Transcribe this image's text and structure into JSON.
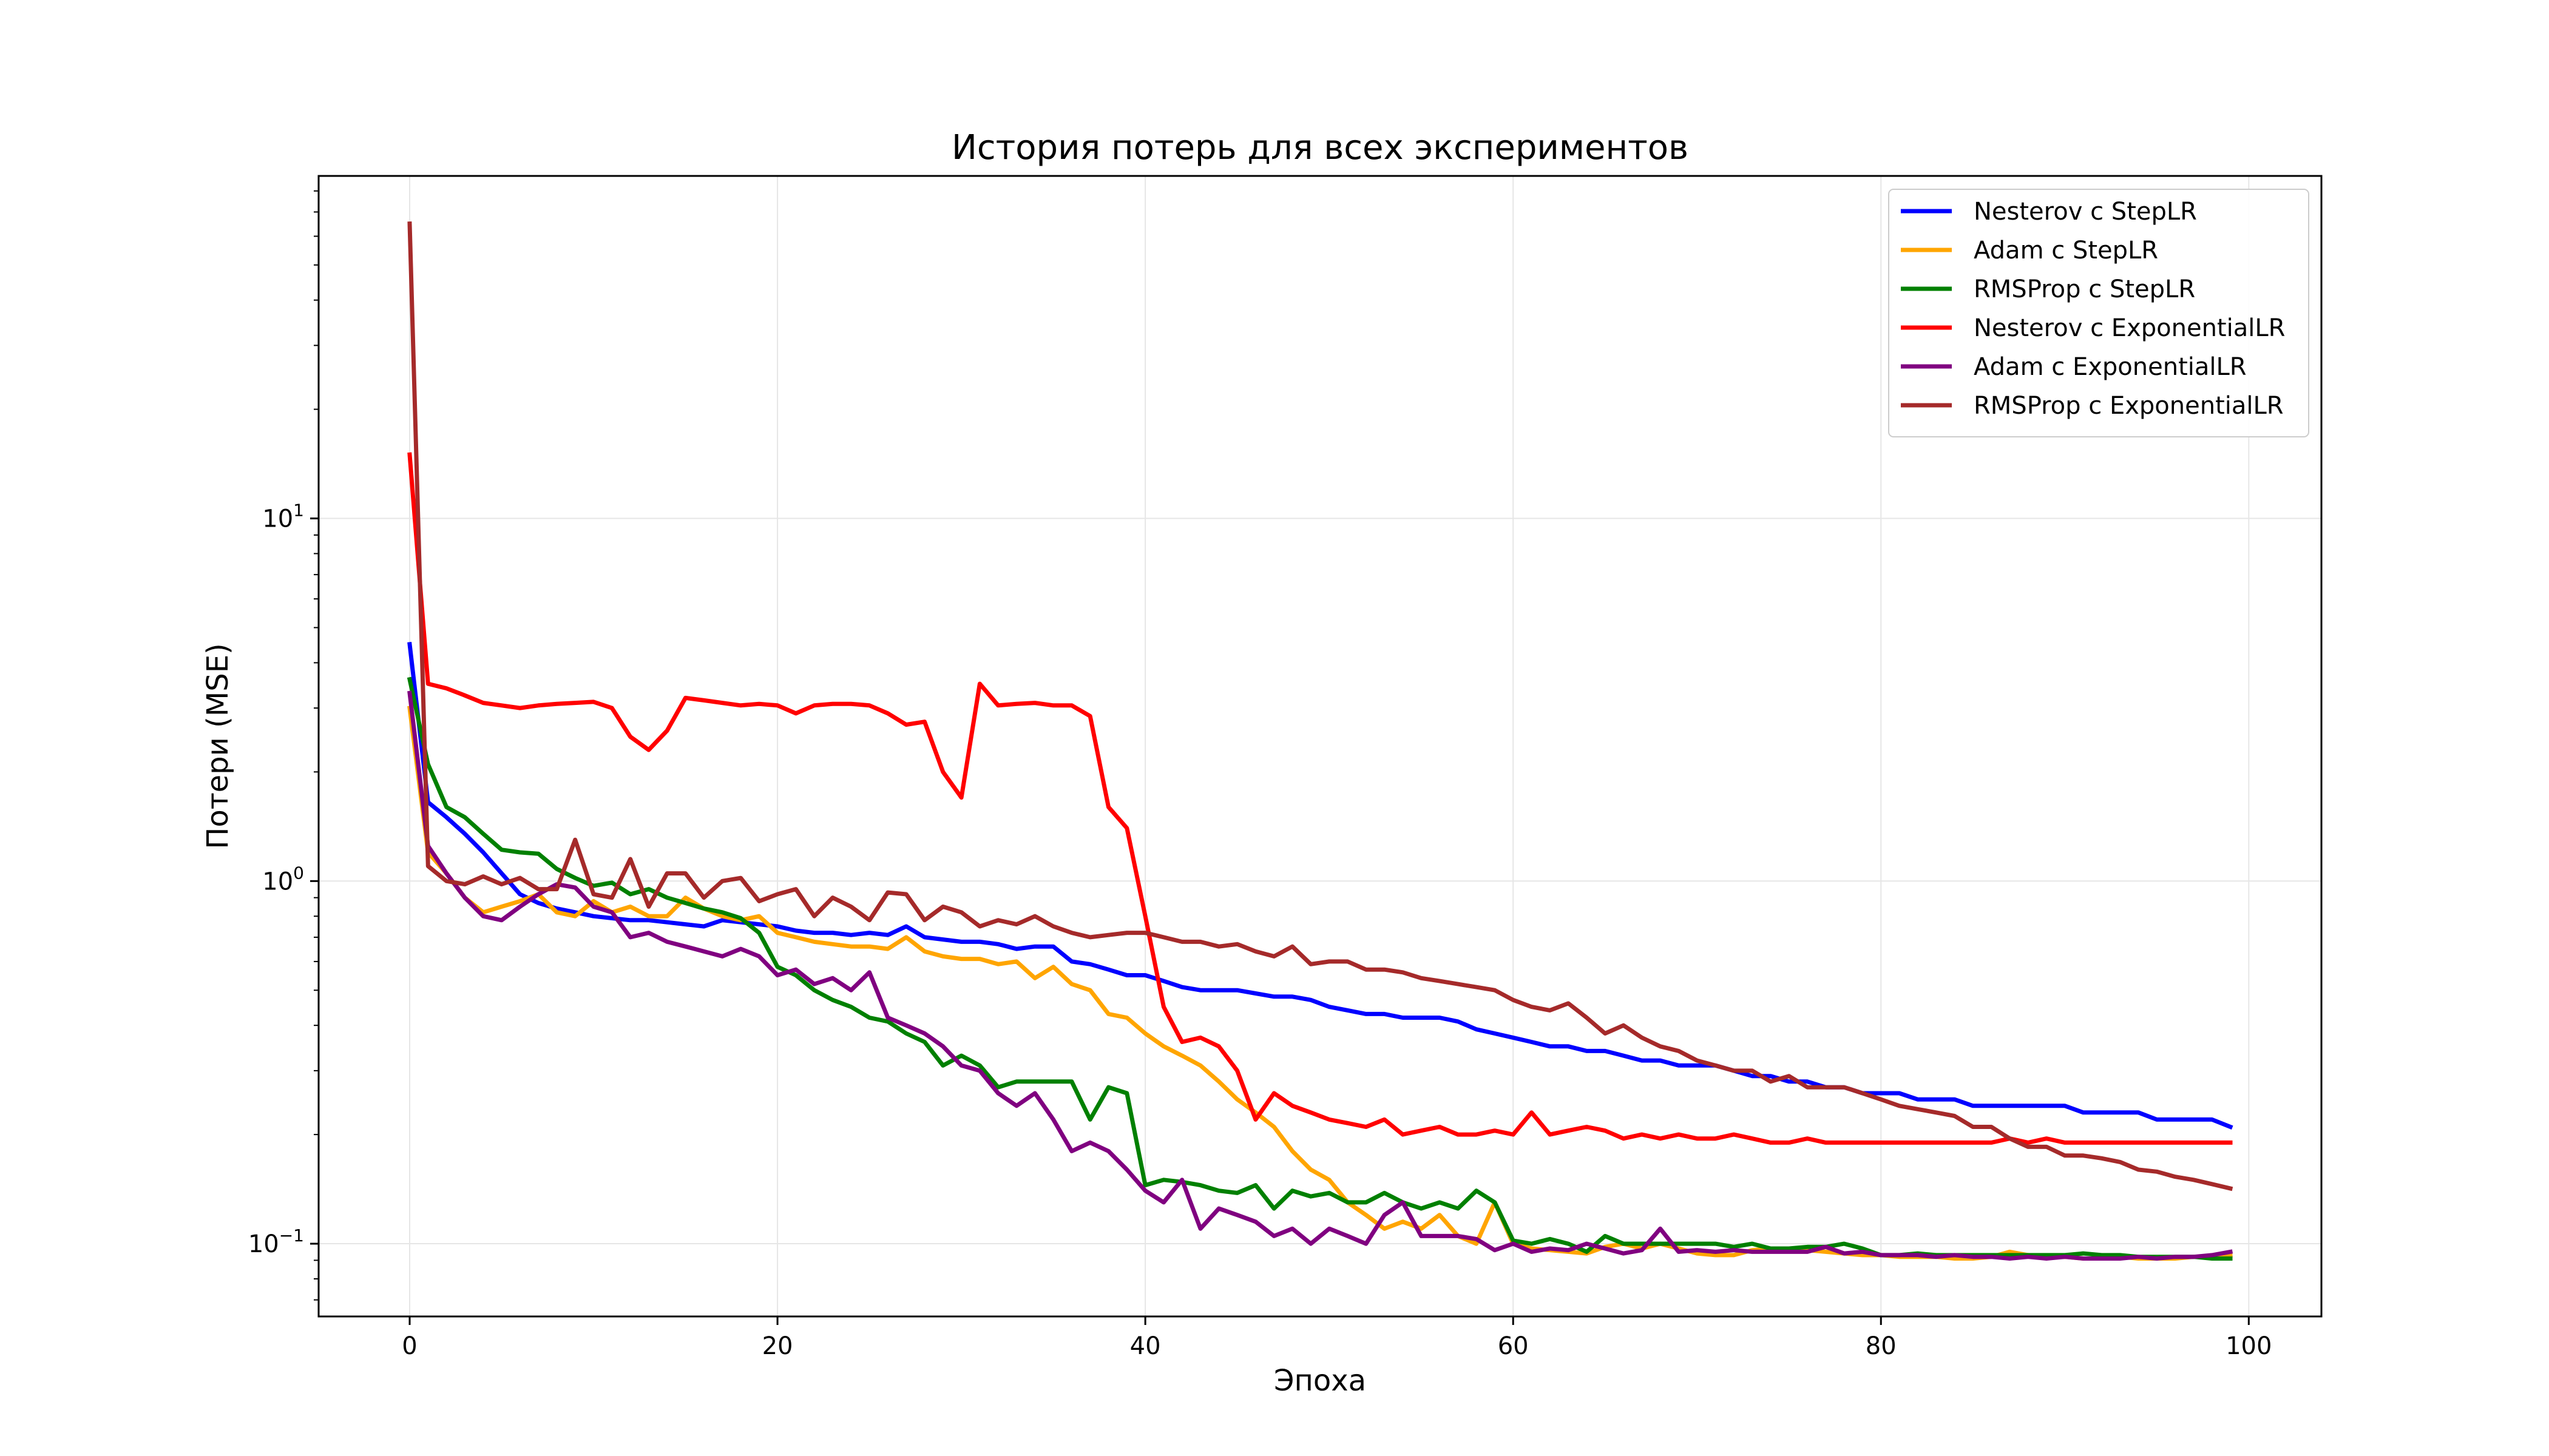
{
  "chart_data": {
    "type": "line",
    "title": "История потерь для всех экспериментов",
    "xlabel": "Эпоха",
    "ylabel": "Потери (MSE)",
    "xlim": [
      -4.95,
      103.95
    ],
    "ylim": [
      0.063,
      88
    ],
    "yscale": "log",
    "grid": true,
    "legend_position": "top-right",
    "x_ticks": [
      0,
      20,
      40,
      60,
      80,
      100
    ],
    "x_tick_labels": [
      "0",
      "20",
      "40",
      "60",
      "80",
      "100"
    ],
    "y_ticks": [
      0.1,
      1,
      10
    ],
    "y_tick_labels": [
      {
        "base": "10",
        "exp": "−1"
      },
      {
        "base": "10",
        "exp": "0"
      },
      {
        "base": "10",
        "exp": "1"
      }
    ],
    "x": [
      0,
      1,
      2,
      3,
      4,
      5,
      6,
      7,
      8,
      9,
      10,
      11,
      12,
      13,
      14,
      15,
      16,
      17,
      18,
      19,
      20,
      21,
      22,
      23,
      24,
      25,
      26,
      27,
      28,
      29,
      30,
      31,
      32,
      33,
      34,
      35,
      36,
      37,
      38,
      39,
      40,
      41,
      42,
      43,
      44,
      45,
      46,
      47,
      48,
      49,
      50,
      51,
      52,
      53,
      54,
      55,
      56,
      57,
      58,
      59,
      60,
      61,
      62,
      63,
      64,
      65,
      66,
      67,
      68,
      69,
      70,
      71,
      72,
      73,
      74,
      75,
      76,
      77,
      78,
      79,
      80,
      81,
      82,
      83,
      84,
      85,
      86,
      87,
      88,
      89,
      90,
      91,
      92,
      93,
      94,
      95,
      96,
      97,
      98,
      99
    ],
    "series": [
      {
        "name": "Nesterov с StepLR",
        "color": "#0000ff",
        "values": [
          4.5,
          1.65,
          1.5,
          1.35,
          1.2,
          1.05,
          0.92,
          0.87,
          0.84,
          0.82,
          0.8,
          0.79,
          0.78,
          0.78,
          0.77,
          0.76,
          0.75,
          0.78,
          0.77,
          0.76,
          0.75,
          0.73,
          0.72,
          0.72,
          0.71,
          0.72,
          0.71,
          0.75,
          0.7,
          0.69,
          0.68,
          0.68,
          0.67,
          0.65,
          0.66,
          0.66,
          0.6,
          0.59,
          0.57,
          0.55,
          0.55,
          0.53,
          0.51,
          0.5,
          0.5,
          0.5,
          0.49,
          0.48,
          0.48,
          0.47,
          0.45,
          0.44,
          0.43,
          0.43,
          0.42,
          0.42,
          0.42,
          0.41,
          0.39,
          0.38,
          0.37,
          0.36,
          0.35,
          0.35,
          0.34,
          0.34,
          0.33,
          0.32,
          0.32,
          0.31,
          0.31,
          0.31,
          0.3,
          0.29,
          0.29,
          0.28,
          0.28,
          0.27,
          0.27,
          0.26,
          0.26,
          0.26,
          0.25,
          0.25,
          0.25,
          0.24,
          0.24,
          0.24,
          0.24,
          0.24,
          0.24,
          0.23,
          0.23,
          0.23,
          0.23,
          0.22,
          0.22,
          0.22,
          0.22,
          0.21
        ]
      },
      {
        "name": "Adam с StepLR",
        "color": "#ffa500",
        "values": [
          3.0,
          1.2,
          1.05,
          0.9,
          0.82,
          0.85,
          0.88,
          0.92,
          0.82,
          0.8,
          0.88,
          0.82,
          0.85,
          0.8,
          0.8,
          0.9,
          0.84,
          0.8,
          0.78,
          0.8,
          0.72,
          0.7,
          0.68,
          0.67,
          0.66,
          0.66,
          0.65,
          0.7,
          0.64,
          0.62,
          0.61,
          0.61,
          0.59,
          0.6,
          0.54,
          0.58,
          0.52,
          0.5,
          0.43,
          0.42,
          0.38,
          0.35,
          0.33,
          0.31,
          0.28,
          0.25,
          0.23,
          0.21,
          0.18,
          0.16,
          0.15,
          0.13,
          0.12,
          0.11,
          0.115,
          0.11,
          0.12,
          0.105,
          0.1,
          0.13,
          0.1,
          0.097,
          0.096,
          0.095,
          0.094,
          0.098,
          0.1,
          0.097,
          0.1,
          0.097,
          0.094,
          0.093,
          0.093,
          0.096,
          0.097,
          0.097,
          0.096,
          0.095,
          0.094,
          0.093,
          0.093,
          0.092,
          0.092,
          0.092,
          0.091,
          0.091,
          0.092,
          0.095,
          0.093,
          0.092,
          0.092,
          0.091,
          0.091,
          0.092,
          0.091,
          0.091,
          0.091,
          0.092,
          0.092,
          0.093
        ]
      },
      {
        "name": "RMSProp с StepLR",
        "color": "#008000",
        "values": [
          3.6,
          2.1,
          1.6,
          1.5,
          1.35,
          1.22,
          1.2,
          1.19,
          1.08,
          1.02,
          0.97,
          0.99,
          0.92,
          0.95,
          0.9,
          0.87,
          0.84,
          0.82,
          0.79,
          0.72,
          0.58,
          0.55,
          0.5,
          0.47,
          0.45,
          0.42,
          0.41,
          0.38,
          0.36,
          0.31,
          0.33,
          0.31,
          0.27,
          0.28,
          0.28,
          0.28,
          0.28,
          0.22,
          0.27,
          0.26,
          0.145,
          0.15,
          0.148,
          0.145,
          0.14,
          0.138,
          0.145,
          0.125,
          0.14,
          0.135,
          0.138,
          0.13,
          0.13,
          0.138,
          0.13,
          0.125,
          0.13,
          0.125,
          0.14,
          0.13,
          0.102,
          0.1,
          0.103,
          0.1,
          0.095,
          0.105,
          0.1,
          0.1,
          0.1,
          0.1,
          0.1,
          0.1,
          0.098,
          0.1,
          0.097,
          0.097,
          0.098,
          0.098,
          0.1,
          0.097,
          0.093,
          0.093,
          0.094,
          0.093,
          0.093,
          0.093,
          0.093,
          0.093,
          0.093,
          0.093,
          0.093,
          0.094,
          0.093,
          0.093,
          0.092,
          0.092,
          0.092,
          0.092,
          0.091,
          0.091
        ]
      },
      {
        "name": "Nesterov с ExponentialLR",
        "color": "#ff0000",
        "values": [
          15,
          3.5,
          3.4,
          3.25,
          3.1,
          3.05,
          3.0,
          3.05,
          3.08,
          3.1,
          3.12,
          3.0,
          2.5,
          2.3,
          2.6,
          3.2,
          3.15,
          3.1,
          3.05,
          3.08,
          3.05,
          2.9,
          3.05,
          3.08,
          3.08,
          3.05,
          2.9,
          2.7,
          2.75,
          2.0,
          1.7,
          3.5,
          3.05,
          3.08,
          3.1,
          3.05,
          3.05,
          2.85,
          1.6,
          1.4,
          0.8,
          0.45,
          0.36,
          0.37,
          0.35,
          0.3,
          0.22,
          0.26,
          0.24,
          0.23,
          0.22,
          0.215,
          0.21,
          0.22,
          0.2,
          0.205,
          0.21,
          0.2,
          0.2,
          0.205,
          0.2,
          0.23,
          0.2,
          0.205,
          0.21,
          0.205,
          0.195,
          0.2,
          0.195,
          0.2,
          0.195,
          0.195,
          0.2,
          0.195,
          0.19,
          0.19,
          0.195,
          0.19,
          0.19,
          0.19,
          0.19,
          0.19,
          0.19,
          0.19,
          0.19,
          0.19,
          0.19,
          0.195,
          0.19,
          0.195,
          0.19,
          0.19,
          0.19,
          0.19,
          0.19,
          0.19,
          0.19,
          0.19,
          0.19,
          0.19
        ]
      },
      {
        "name": "Adam с ExponentialLR",
        "color": "#800080",
        "values": [
          3.3,
          1.25,
          1.05,
          0.9,
          0.8,
          0.78,
          0.85,
          0.92,
          0.98,
          0.96,
          0.85,
          0.82,
          0.7,
          0.72,
          0.68,
          0.66,
          0.64,
          0.62,
          0.65,
          0.62,
          0.55,
          0.57,
          0.52,
          0.54,
          0.5,
          0.56,
          0.42,
          0.4,
          0.38,
          0.35,
          0.31,
          0.3,
          0.26,
          0.24,
          0.26,
          0.22,
          0.18,
          0.19,
          0.18,
          0.16,
          0.14,
          0.13,
          0.15,
          0.11,
          0.125,
          0.12,
          0.115,
          0.105,
          0.11,
          0.1,
          0.11,
          0.105,
          0.1,
          0.12,
          0.13,
          0.105,
          0.105,
          0.105,
          0.103,
          0.096,
          0.1,
          0.095,
          0.097,
          0.096,
          0.1,
          0.097,
          0.094,
          0.096,
          0.11,
          0.095,
          0.096,
          0.095,
          0.096,
          0.095,
          0.095,
          0.095,
          0.095,
          0.098,
          0.094,
          0.095,
          0.093,
          0.093,
          0.093,
          0.092,
          0.093,
          0.092,
          0.092,
          0.091,
          0.092,
          0.091,
          0.092,
          0.091,
          0.091,
          0.091,
          0.092,
          0.091,
          0.092,
          0.092,
          0.093,
          0.095
        ]
      },
      {
        "name": "RMSProp с ExponentialLR",
        "color": "#a52a2a",
        "values": [
          65,
          1.1,
          1.0,
          0.98,
          1.03,
          0.98,
          1.02,
          0.95,
          0.95,
          1.3,
          0.92,
          0.9,
          1.15,
          0.85,
          1.05,
          1.05,
          0.9,
          1.0,
          1.02,
          0.88,
          0.92,
          0.95,
          0.8,
          0.9,
          0.85,
          0.78,
          0.93,
          0.92,
          0.78,
          0.85,
          0.82,
          0.75,
          0.78,
          0.76,
          0.8,
          0.75,
          0.72,
          0.7,
          0.71,
          0.72,
          0.72,
          0.7,
          0.68,
          0.68,
          0.66,
          0.67,
          0.64,
          0.62,
          0.66,
          0.59,
          0.6,
          0.6,
          0.57,
          0.57,
          0.56,
          0.54,
          0.53,
          0.52,
          0.51,
          0.5,
          0.47,
          0.45,
          0.44,
          0.46,
          0.42,
          0.38,
          0.4,
          0.37,
          0.35,
          0.34,
          0.32,
          0.31,
          0.3,
          0.3,
          0.28,
          0.29,
          0.27,
          0.27,
          0.27,
          0.26,
          0.25,
          0.24,
          0.235,
          0.23,
          0.225,
          0.21,
          0.21,
          0.195,
          0.185,
          0.185,
          0.175,
          0.175,
          0.172,
          0.168,
          0.16,
          0.158,
          0.153,
          0.15,
          0.146,
          0.142
        ]
      }
    ]
  }
}
